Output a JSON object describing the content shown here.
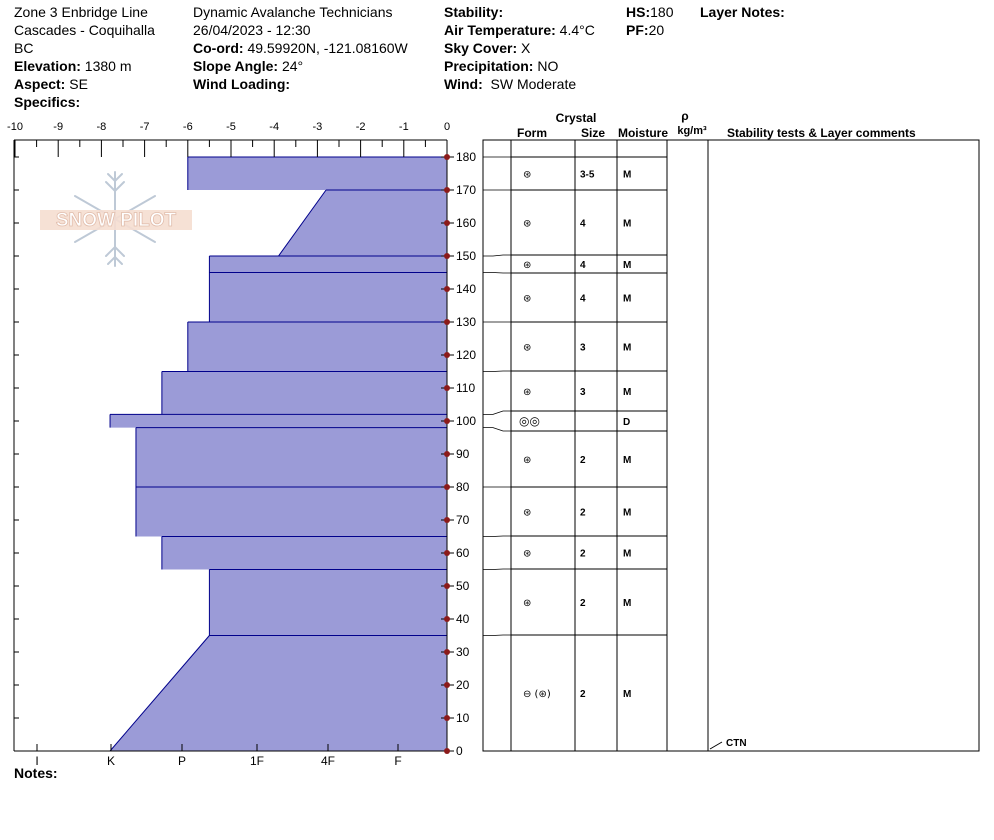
{
  "header": {
    "col1": [
      "Zone 3 Enbridge Line",
      "Cascades - Coquihalla",
      "BC"
    ],
    "elevation_label": "Elevation:",
    "elevation_value": "1380 m",
    "aspect_label": "Aspect:",
    "aspect_value": "SE",
    "specifics_label": "Specifics:",
    "organization": "Dynamic Avalanche Technicians",
    "datetime": "26/04/2023 - 12:30",
    "coord_label": "Co-ord:",
    "coord_value": "49.59920N, -121.08160W",
    "slope_label": "Slope Angle:",
    "slope_value": "24°",
    "wind_loading_label": "Wind Loading:",
    "stability_label": "Stability:",
    "air_temp_label": "Air Temperature:",
    "air_temp_value": "4.4°C",
    "sky_label": "Sky Cover:",
    "sky_value": "X",
    "precip_label": "Precipitation:",
    "precip_value": "NO",
    "wind_label": "Wind:",
    "wind_value": "SW Moderate",
    "hs_label": "HS:",
    "hs_value": "180",
    "pf_label": "PF:",
    "pf_value": "20",
    "layer_notes_label": "Layer Notes:"
  },
  "logo_text": "SNOW PILOT",
  "notes_label": "Notes:",
  "table_headers": {
    "crystal": "Crystal",
    "form": "Form",
    "size": "Size",
    "moisture": "Moisture",
    "rho": "ρ",
    "density_unit": "kg/m³",
    "stability": "Stability tests & Layer comments"
  },
  "colors": {
    "fill": "#9b9bd7",
    "edge": "#00008b",
    "tick_marker": "#8b1a1a"
  },
  "chart_data": {
    "type": "area",
    "title": "",
    "x_axis": {
      "ticks": [
        "-10",
        "-9",
        "-8",
        "-7",
        "-6",
        "-5",
        "-4",
        "-3",
        "-2",
        "-1",
        "0"
      ],
      "range": [
        -10,
        0
      ]
    },
    "hardness_axis": {
      "labels": [
        "I",
        "K",
        "P",
        "1F",
        "4F",
        "F"
      ]
    },
    "y_axis": {
      "ticks": [
        "0",
        "10",
        "20",
        "30",
        "40",
        "50",
        "60",
        "70",
        "80",
        "90",
        "100",
        "110",
        "120",
        "130",
        "140",
        "150",
        "160",
        "170",
        "180"
      ],
      "range": [
        0,
        180
      ],
      "units": "cm"
    },
    "hardness_profile": [
      {
        "top": 180,
        "bottom": 170,
        "hardness_top": 6.0,
        "hardness_bottom": 6.0
      },
      {
        "top": 170,
        "bottom": 150,
        "hardness_top": 2.8,
        "hardness_bottom": 3.9
      },
      {
        "top": 150,
        "bottom": 145,
        "hardness_top": 5.5,
        "hardness_bottom": 5.5
      },
      {
        "top": 145,
        "bottom": 130,
        "hardness_top": 5.5,
        "hardness_bottom": 5.5
      },
      {
        "top": 130,
        "bottom": 115,
        "hardness_top": 6.0,
        "hardness_bottom": 6.0
      },
      {
        "top": 115,
        "bottom": 102,
        "hardness_top": 6.6,
        "hardness_bottom": 6.6
      },
      {
        "top": 102,
        "bottom": 98,
        "hardness_top": 7.8,
        "hardness_bottom": 7.8
      },
      {
        "top": 98,
        "bottom": 80,
        "hardness_top": 7.2,
        "hardness_bottom": 7.2
      },
      {
        "top": 80,
        "bottom": 65,
        "hardness_top": 7.2,
        "hardness_bottom": 7.2
      },
      {
        "top": 65,
        "bottom": 55,
        "hardness_top": 6.6,
        "hardness_bottom": 6.6
      },
      {
        "top": 55,
        "bottom": 35,
        "hardness_top": 5.5,
        "hardness_bottom": 5.5
      },
      {
        "top": 35,
        "bottom": 0,
        "hardness_top": 5.5,
        "hardness_bottom": 7.8
      }
    ],
    "layers": [
      {
        "top": 180,
        "bottom": 170,
        "form": "graupel",
        "size": "3-5",
        "moisture": "M"
      },
      {
        "top": 170,
        "bottom": 150,
        "form": "graupel",
        "size": "4",
        "moisture": "M"
      },
      {
        "top": 150,
        "bottom": 145,
        "form": "graupel",
        "size": "4",
        "moisture": "M"
      },
      {
        "top": 145,
        "bottom": 130,
        "form": "graupel",
        "size": "4",
        "moisture": "M"
      },
      {
        "top": 130,
        "bottom": 115,
        "form": "melt-form",
        "size": "3",
        "moisture": "M"
      },
      {
        "top": 115,
        "bottom": 102,
        "form": "melt-form",
        "size": "3",
        "moisture": "M"
      },
      {
        "top": 102,
        "bottom": 98,
        "form": "double-circle",
        "size": "",
        "moisture": "D"
      },
      {
        "top": 98,
        "bottom": 80,
        "form": "melt-form",
        "size": "2",
        "moisture": "M"
      },
      {
        "top": 80,
        "bottom": 65,
        "form": "melt-form",
        "size": "2",
        "moisture": "M"
      },
      {
        "top": 65,
        "bottom": 55,
        "form": "melt-form",
        "size": "2",
        "moisture": "M"
      },
      {
        "top": 55,
        "bottom": 35,
        "form": "melt-form",
        "size": "2",
        "moisture": "M"
      },
      {
        "top": 35,
        "bottom": 0,
        "form": "ice-melt-form",
        "size": "2",
        "moisture": "M"
      }
    ],
    "stability_tests": [
      {
        "depth": 0,
        "label": "CTN"
      }
    ]
  }
}
